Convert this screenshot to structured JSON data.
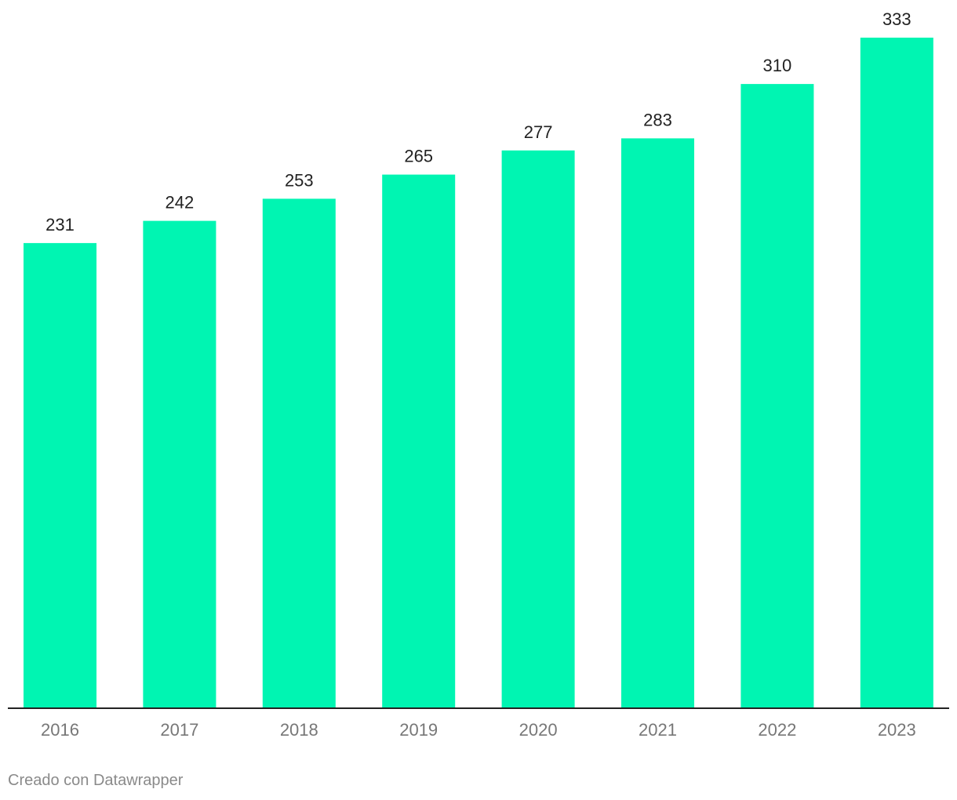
{
  "chart_data": {
    "type": "bar",
    "categories": [
      "2016",
      "2017",
      "2018",
      "2019",
      "2020",
      "2021",
      "2022",
      "2023"
    ],
    "values": [
      231,
      242,
      253,
      265,
      277,
      283,
      310,
      333
    ],
    "data_labels": [
      "231",
      "242",
      "253",
      "265",
      "277",
      "283",
      "310",
      "333"
    ],
    "title": "",
    "xlabel": "",
    "ylabel": "",
    "ylim": [
      0,
      333
    ],
    "grid": false,
    "legend": "none",
    "bar_color": "#00f5b2",
    "axis_color": "#222222",
    "label_color": "#222222",
    "tick_color": "#777777"
  },
  "footer": {
    "credit": "Creado con Datawrapper"
  }
}
